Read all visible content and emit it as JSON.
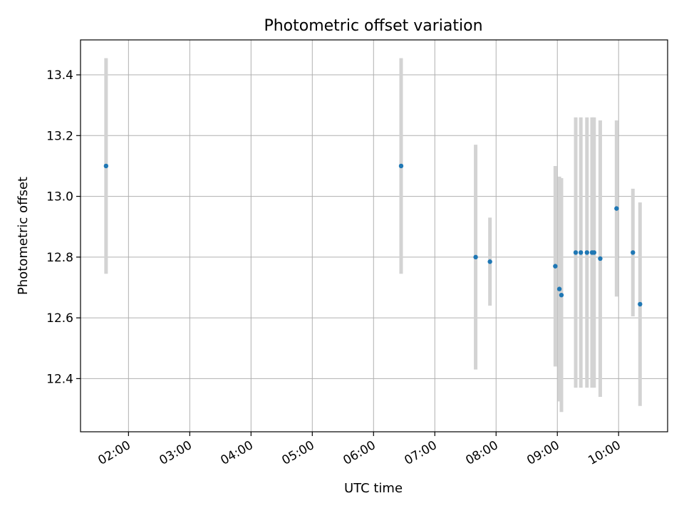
{
  "chart_data": {
    "type": "scatter",
    "title": "Photometric offset variation",
    "xlabel": "UTC time",
    "ylabel": "Photometric offset",
    "x_ticks": [
      "02:00",
      "03:00",
      "04:00",
      "05:00",
      "06:00",
      "07:00",
      "08:00",
      "09:00",
      "10:00"
    ],
    "y_ticks": [
      "12.4",
      "12.6",
      "12.8",
      "13.0",
      "13.2",
      "13.4"
    ],
    "xlim": [
      "01:13",
      "10:48"
    ],
    "ylim": [
      12.225,
      13.515
    ],
    "grid": true,
    "colors": {
      "marker": "#1f77b4",
      "errorbar": "#d3d3d3",
      "grid": "#b0b0b0"
    },
    "points": [
      {
        "x": "01:38",
        "y": 13.1,
        "err": 0.355
      },
      {
        "x": "06:27",
        "y": 13.1,
        "err": 0.355
      },
      {
        "x": "07:40",
        "y": 12.8,
        "err": 0.37
      },
      {
        "x": "07:54",
        "y": 12.785,
        "err": 0.145
      },
      {
        "x": "08:58",
        "y": 12.77,
        "err": 0.33
      },
      {
        "x": "09:02",
        "y": 12.695,
        "err": 0.37
      },
      {
        "x": "09:04",
        "y": 12.675,
        "err": 0.385
      },
      {
        "x": "09:18",
        "y": 12.815,
        "err": 0.445
      },
      {
        "x": "09:23",
        "y": 12.815,
        "err": 0.445
      },
      {
        "x": "09:29",
        "y": 12.815,
        "err": 0.445
      },
      {
        "x": "09:34",
        "y": 12.815,
        "err": 0.445
      },
      {
        "x": "09:36",
        "y": 12.815,
        "err": 0.445
      },
      {
        "x": "09:42",
        "y": 12.795,
        "err": 0.455
      },
      {
        "x": "09:58",
        "y": 12.96,
        "err": 0.29
      },
      {
        "x": "10:14",
        "y": 12.815,
        "err": 0.21
      },
      {
        "x": "10:21",
        "y": 12.645,
        "err": 0.335
      }
    ]
  }
}
